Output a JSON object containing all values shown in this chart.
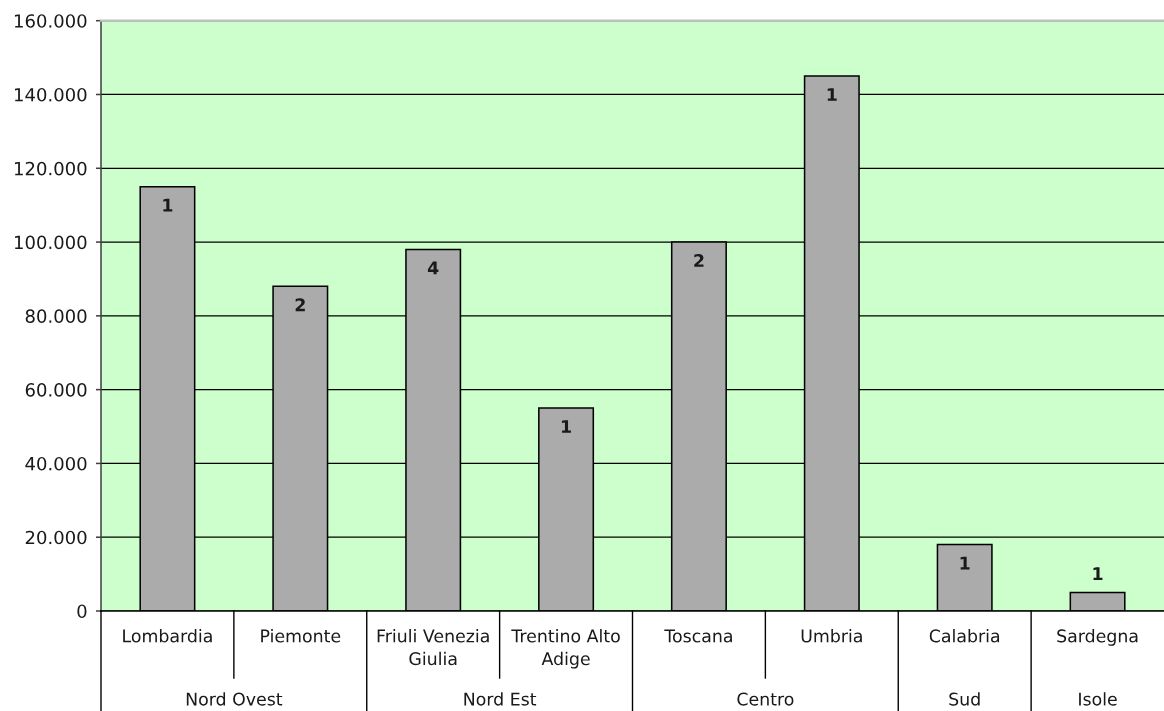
{
  "chart_data": {
    "type": "bar",
    "categories": [
      "Lombardia",
      "Piemonte",
      "Friuli Venezia Giulia",
      "Trentino Alto Adige",
      "Toscana",
      "Umbria",
      "Calabria",
      "Sardegna"
    ],
    "values": [
      115000,
      88000,
      98000,
      55000,
      100000,
      145000,
      18000,
      5000
    ],
    "color": "#ababab",
    "ylim": [
      0,
      160000
    ],
    "yticks": [
      0,
      {
        "value": 20000,
        "label": "20.000"
      },
      {
        "value": 40000,
        "label": "40.000"
      },
      {
        "value": 60000,
        "label": "60.000"
      },
      {
        "value": 80000,
        "label": "80.000"
      },
      {
        "value": 100000,
        "label": "100.000"
      },
      {
        "value": 120000,
        "label": "120.000"
      },
      {
        "value": 140000,
        "label": "140.000"
      },
      {
        "value": 160000,
        "label": "160.000"
      }
    ],
    "grid": "y",
    "annotations": [
      "Nord Ovest",
      "Nord Est",
      "Centro",
      "Sud",
      "Isole",
      {
        "text": "1",
        "x": "Lombardia",
        "y": 115000
      },
      {
        "text": "2",
        "x": "Piemonte",
        "y": 88000
      },
      {
        "text": "4",
        "x": "Friuli Venezia Giulia",
        "y": 98000
      },
      {
        "text": "1",
        "x": "Trentino Alto Adige",
        "y": 55000
      },
      {
        "text": "2",
        "x": "Toscana",
        "y": 100000
      },
      {
        "text": "1",
        "x": "Umbria",
        "y": 145000
      },
      {
        "text": "1",
        "x": "Calabria",
        "y": 18000
      },
      {
        "text": "1",
        "x": "Sardegna",
        "y": 5000
      }
    ]
  }
}
